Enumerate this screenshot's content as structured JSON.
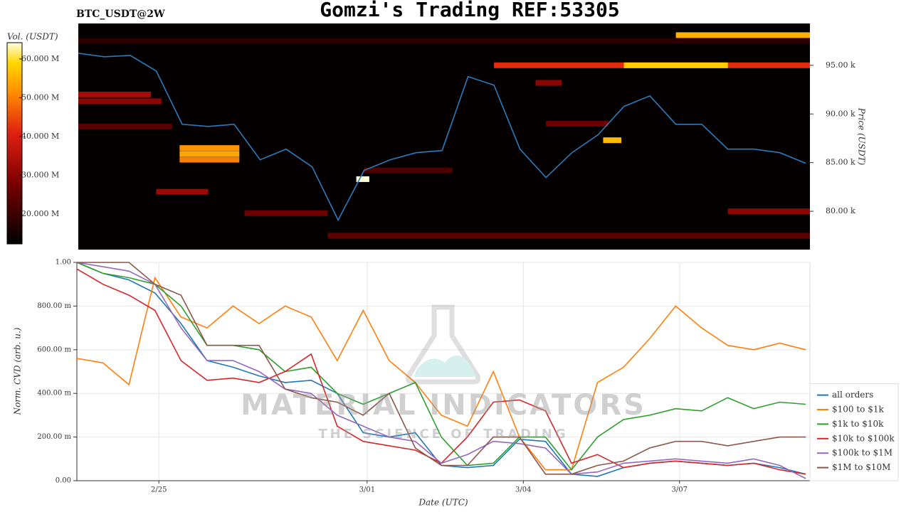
{
  "chart_data": [
    {
      "type": "heatmap",
      "title": "Gomzi's Trading REF:53305",
      "subtitle": "BTC_USDT@2W",
      "ylabel": "Price (USDT)",
      "xlim": [
        0,
        14.08
      ],
      "ylim": [
        76060,
        99300
      ],
      "yticks": [
        {
          "value": 80000,
          "label": "80.00 k"
        },
        {
          "value": 85000,
          "label": "85.00 k"
        },
        {
          "value": 90000,
          "label": "90.00 k"
        },
        {
          "value": 95000,
          "label": "95.00 k"
        }
      ],
      "x": [
        0,
        0.5,
        1,
        1.5,
        2,
        2.5,
        3,
        3.5,
        4,
        4.5,
        5,
        5.5,
        6,
        6.5,
        7,
        7.5,
        8,
        8.5,
        9,
        9.5,
        10,
        10.5,
        11,
        11.5,
        12,
        12.5,
        13,
        13.5,
        14
      ],
      "line": {
        "color": "#2a7bbd",
        "values": [
          96240,
          95880,
          96020,
          94420,
          88940,
          88720,
          88940,
          85290,
          86390,
          84560,
          79090,
          84200,
          85290,
          86020,
          86240,
          93830,
          92960,
          86390,
          83470,
          86020,
          87850,
          90770,
          91860,
          88940,
          88940,
          86390,
          86390,
          86020,
          84930
        ]
      },
      "cells": [
        {
          "price": 97500,
          "x0": 0,
          "x1": 14.08,
          "volume": 18000000
        },
        {
          "price": 98100,
          "x0": 11.5,
          "x1": 14.08,
          "volume": 55000000
        },
        {
          "price": 95000,
          "x0": 8.0,
          "x1": 14.08,
          "volume": 42000000
        },
        {
          "price": 95000,
          "x0": 10.5,
          "x1": 12.5,
          "volume": 58000000
        },
        {
          "price": 93200,
          "x0": 8.8,
          "x1": 9.3,
          "volume": 30000000
        },
        {
          "price": 92000,
          "x0": 0,
          "x1": 1.4,
          "volume": 33000000
        },
        {
          "price": 91300,
          "x0": 0,
          "x1": 1.6,
          "volume": 30000000
        },
        {
          "price": 89000,
          "x0": 9.0,
          "x1": 10.2,
          "volume": 26000000
        },
        {
          "price": 88700,
          "x0": 0,
          "x1": 1.8,
          "volume": 24000000
        },
        {
          "price": 87300,
          "x0": 10.1,
          "x1": 10.45,
          "volume": 56000000
        },
        {
          "price": 86500,
          "x0": 1.95,
          "x1": 3.1,
          "volume": 52000000
        },
        {
          "price": 85900,
          "x0": 1.95,
          "x1": 3.1,
          "volume": 54000000
        },
        {
          "price": 85300,
          "x0": 1.95,
          "x1": 3.1,
          "volume": 50000000
        },
        {
          "price": 84200,
          "x0": 5.5,
          "x1": 7.2,
          "volume": 22000000
        },
        {
          "price": 83300,
          "x0": 5.35,
          "x1": 5.6,
          "volume": 64000000
        },
        {
          "price": 82000,
          "x0": 1.5,
          "x1": 2.5,
          "volume": 32000000
        },
        {
          "price": 80000,
          "x0": 12.5,
          "x1": 14.08,
          "volume": 30000000
        },
        {
          "price": 79800,
          "x0": 3.2,
          "x1": 4.8,
          "volume": 26000000
        },
        {
          "price": 77500,
          "x0": 4.8,
          "x1": 14.08,
          "volume": 24000000
        }
      ],
      "colorbar": {
        "label": "Vol. (USDT)",
        "lim": [
          12300000,
          64200000
        ],
        "ticks": [
          {
            "value": 20000000,
            "label": "20.000 M"
          },
          {
            "value": 30000000,
            "label": "30.000 M"
          },
          {
            "value": 40000000,
            "label": "40.000 M"
          },
          {
            "value": 50000000,
            "label": "50.000 M"
          },
          {
            "value": 60000000,
            "label": "60.000 M"
          }
        ]
      }
    },
    {
      "type": "line",
      "xlabel": "Date (UTC)",
      "ylabel": "Norm. CVD (arb. u.)",
      "watermark": [
        "MATERIAL INDICATORS",
        "THE SCIENCE OF TRADING"
      ],
      "grid": true,
      "legend": "lower-right",
      "xlim": [
        0,
        14.08
      ],
      "ylim": [
        0,
        1
      ],
      "xticks": [
        {
          "value": 1.575,
          "label": "2/25"
        },
        {
          "value": 5.575,
          "label": "3/01"
        },
        {
          "value": 8.575,
          "label": "3/04"
        },
        {
          "value": 11.575,
          "label": "3/07"
        }
      ],
      "yticks": [
        {
          "value": 0,
          "label": "0.00"
        },
        {
          "value": 0.2,
          "label": "200.00 m"
        },
        {
          "value": 0.4,
          "label": "400.00 m"
        },
        {
          "value": 0.6,
          "label": "600.00 m"
        },
        {
          "value": 0.8,
          "label": "800.00 m"
        },
        {
          "value": 1,
          "label": "1.00"
        }
      ],
      "x": [
        0,
        0.5,
        1,
        1.5,
        2,
        2.5,
        3,
        3.5,
        4,
        4.5,
        5,
        5.5,
        6,
        6.5,
        7,
        7.5,
        8,
        8.5,
        9,
        9.5,
        10,
        10.5,
        11,
        11.5,
        12,
        12.5,
        13,
        13.5,
        14
      ],
      "series": [
        {
          "name": "all orders",
          "color": "#1f77b4",
          "values": [
            1.0,
            0.95,
            0.92,
            0.86,
            0.72,
            0.55,
            0.52,
            0.48,
            0.45,
            0.46,
            0.4,
            0.22,
            0.2,
            0.22,
            0.07,
            0.06,
            0.07,
            0.19,
            0.18,
            0.03,
            0.02,
            0.06,
            0.08,
            0.09,
            0.08,
            0.07,
            0.08,
            0.06,
            0.03
          ]
        },
        {
          "name": "$100 to $1k",
          "color": "#ff7f0e",
          "values": [
            0.56,
            0.54,
            0.44,
            0.93,
            0.75,
            0.7,
            0.8,
            0.72,
            0.8,
            0.75,
            0.55,
            0.78,
            0.55,
            0.45,
            0.3,
            0.25,
            0.5,
            0.2,
            0.05,
            0.05,
            0.45,
            0.52,
            0.65,
            0.8,
            0.7,
            0.62,
            0.6,
            0.63,
            0.6
          ]
        },
        {
          "name": "$1k to $10k",
          "color": "#2ca02c",
          "values": [
            1.0,
            0.95,
            0.93,
            0.9,
            0.8,
            0.62,
            0.62,
            0.6,
            0.5,
            0.52,
            0.4,
            0.35,
            0.4,
            0.45,
            0.2,
            0.07,
            0.08,
            0.2,
            0.2,
            0.05,
            0.2,
            0.28,
            0.3,
            0.33,
            0.32,
            0.38,
            0.33,
            0.36,
            0.35
          ]
        },
        {
          "name": "$10k to $100k",
          "color": "#d62728",
          "values": [
            0.97,
            0.9,
            0.85,
            0.78,
            0.55,
            0.46,
            0.47,
            0.45,
            0.5,
            0.58,
            0.25,
            0.18,
            0.16,
            0.14,
            0.08,
            0.2,
            0.36,
            0.37,
            0.32,
            0.08,
            0.12,
            0.06,
            0.08,
            0.09,
            0.08,
            0.07,
            0.08,
            0.05,
            0.03
          ]
        },
        {
          "name": "$100k to $1M",
          "color": "#9467bd",
          "values": [
            1.0,
            0.98,
            0.96,
            0.9,
            0.7,
            0.55,
            0.55,
            0.5,
            0.42,
            0.4,
            0.3,
            0.25,
            0.2,
            0.18,
            0.08,
            0.12,
            0.18,
            0.17,
            0.15,
            0.03,
            0.04,
            0.08,
            0.09,
            0.1,
            0.09,
            0.08,
            0.1,
            0.07,
            0.01
          ]
        },
        {
          "name": "$1M to $10M",
          "color": "#8c564b",
          "values": [
            1.0,
            1.0,
            1.0,
            0.9,
            0.85,
            0.62,
            0.62,
            0.62,
            0.42,
            0.38,
            0.36,
            0.3,
            0.4,
            0.15,
            0.07,
            0.07,
            0.2,
            0.2,
            0.03,
            0.03,
            0.07,
            0.09,
            0.15,
            0.18,
            0.18,
            0.16,
            0.18,
            0.2,
            0.2
          ]
        }
      ]
    }
  ]
}
